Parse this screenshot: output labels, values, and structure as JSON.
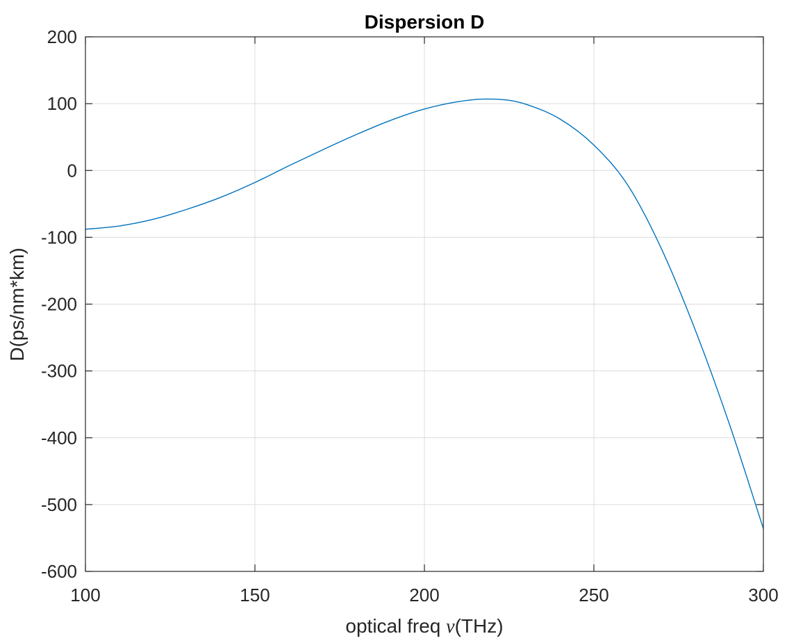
{
  "chart_data": {
    "type": "line",
    "title": "Dispersion D",
    "xlabel_prefix": "optical freq ",
    "xlabel_symbol": "ν",
    "xlabel_suffix": "(THz)",
    "ylabel": "D(ps/nm*km)",
    "xlim": [
      100,
      300
    ],
    "ylim": [
      -600,
      200
    ],
    "xticks": [
      100,
      150,
      200,
      250,
      300
    ],
    "yticks": [
      -600,
      -500,
      -400,
      -300,
      -200,
      -100,
      0,
      100,
      200
    ],
    "xtick_labels": [
      "100",
      "150",
      "200",
      "250",
      "300"
    ],
    "ytick_labels": [
      "-600",
      "-500",
      "-400",
      "-300",
      "-200",
      "-100",
      "0",
      "100",
      "200"
    ],
    "grid": true,
    "legend": "none",
    "series": [
      {
        "color": "#0072BD",
        "x": [
          100,
          110,
          120,
          130,
          140,
          150,
          160,
          170,
          180,
          190,
          200,
          210,
          218,
          225,
          230,
          240,
          250,
          260,
          270,
          280,
          290,
          300
        ],
        "y": [
          -88,
          -83,
          -73,
          -58,
          -40,
          -18,
          7,
          31,
          54,
          75,
          92,
          103,
          107,
          105,
          99,
          77,
          38,
          -22,
          -118,
          -240,
          -380,
          -536
        ]
      }
    ]
  }
}
